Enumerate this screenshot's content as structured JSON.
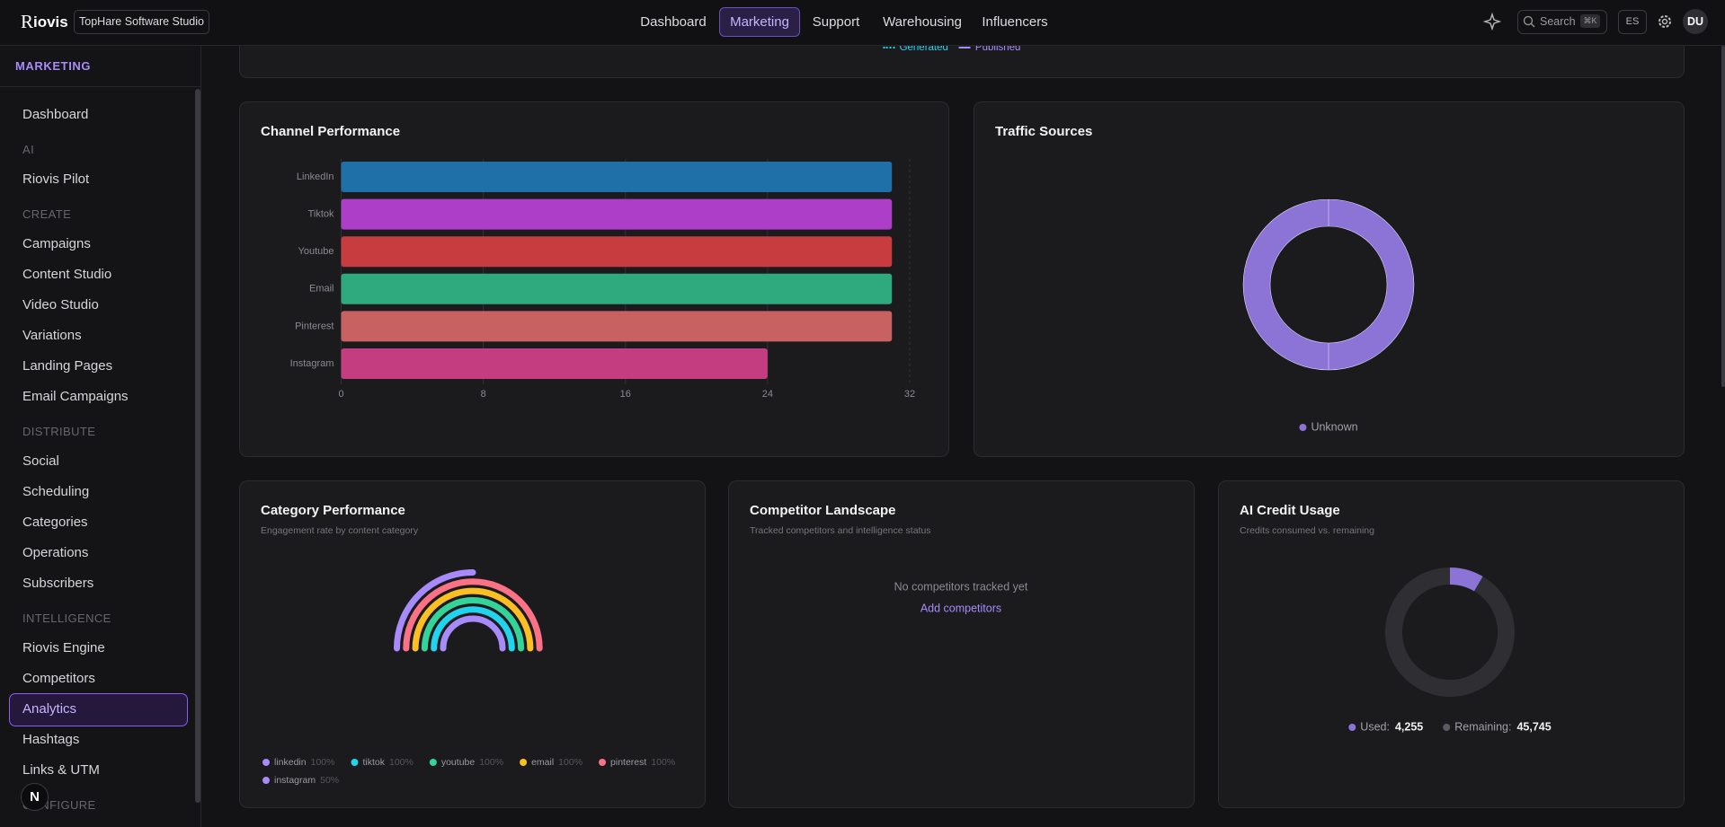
{
  "header": {
    "logo_mark": "R",
    "logo_text": "iovis",
    "workspace": "TopHare Software Studio",
    "nav": [
      "Dashboard",
      "Marketing",
      "Support",
      "Warehousing",
      "Influencers"
    ],
    "active_nav": 1,
    "search": "Search",
    "shortcut": "⌘K",
    "language": "ES",
    "avatar": "DU"
  },
  "sidebar": {
    "title": "MARKETING",
    "active": 19,
    "badge": "N",
    "entries": [
      {
        "label": "Dashboard"
      },
      {
        "section": "AI"
      },
      {
        "label": "Riovis Pilot"
      },
      {
        "section": "CREATE"
      },
      {
        "label": "Campaigns"
      },
      {
        "label": "Content Studio"
      },
      {
        "label": "Video Studio"
      },
      {
        "label": "Variations"
      },
      {
        "label": "Landing Pages"
      },
      {
        "label": "Email Campaigns"
      },
      {
        "section": "DISTRIBUTE"
      },
      {
        "label": "Social"
      },
      {
        "label": "Scheduling"
      },
      {
        "label": "Categories"
      },
      {
        "label": "Operations"
      },
      {
        "label": "Subscribers"
      },
      {
        "section": "INTELLIGENCE"
      },
      {
        "label": "Riovis Engine"
      },
      {
        "label": "Competitors"
      },
      {
        "label": "Analytics"
      },
      {
        "label": "Hashtags"
      },
      {
        "label": "Links & UTM"
      },
      {
        "section": "CONFIGURE"
      }
    ]
  },
  "previous_panel": {
    "legend": [
      {
        "name": "Generated",
        "color": "#22d3ee",
        "dashed": true
      },
      {
        "name": "Published",
        "color": "#a78bfa",
        "dashed": false
      }
    ]
  },
  "competitor_panel": {
    "title": "Competitor Landscape",
    "subtitle": "Tracked competitors and intelligence status",
    "empty_message": "No competitors tracked yet",
    "action": "Add competitors"
  },
  "chart_data": [
    {
      "type": "bar",
      "orientation": "horizontal",
      "title": "Channel Performance",
      "categories": [
        "LinkedIn",
        "Tiktok",
        "Youtube",
        "Email",
        "Pinterest",
        "Instagram"
      ],
      "values": [
        31,
        31,
        31,
        31,
        31,
        24
      ],
      "colors": [
        "#1f6fa8",
        "#ad3ec7",
        "#c73c3f",
        "#2fa97e",
        "#c86262",
        "#c33d80"
      ],
      "xlim": [
        0,
        32
      ],
      "xticks": [
        0,
        8,
        16,
        24,
        32
      ],
      "grid": true
    },
    {
      "type": "pie",
      "donut": true,
      "title": "Traffic Sources",
      "categories": [
        "Unknown"
      ],
      "values": [
        100
      ],
      "colors": [
        "#8b74d6"
      ],
      "legend": "bottom"
    },
    {
      "type": "radial_bar",
      "title": "Category Performance",
      "subtitle": "Engagement rate by content category",
      "categories": [
        "linkedin",
        "tiktok",
        "youtube",
        "email",
        "pinterest",
        "instagram"
      ],
      "values": [
        100,
        100,
        100,
        100,
        100,
        50
      ],
      "value_labels": [
        "100%",
        "100%",
        "100%",
        "100%",
        "100%",
        "50%"
      ],
      "colors": [
        "#a78bfa",
        "#22d3ee",
        "#34d399",
        "#fbbf24",
        "#fb7185",
        "#a78bfa"
      ],
      "rlim": [
        0,
        100
      ]
    },
    {
      "type": "pie",
      "donut": true,
      "title": "AI Credit Usage",
      "subtitle": "Credits consumed vs. remaining",
      "categories": [
        "Used:",
        "Remaining:"
      ],
      "values": [
        4255,
        45745
      ],
      "value_labels": [
        "4,255",
        "45,745"
      ],
      "colors": [
        "#8b74d6",
        "#2e2e33"
      ],
      "legend": "bottom"
    }
  ]
}
